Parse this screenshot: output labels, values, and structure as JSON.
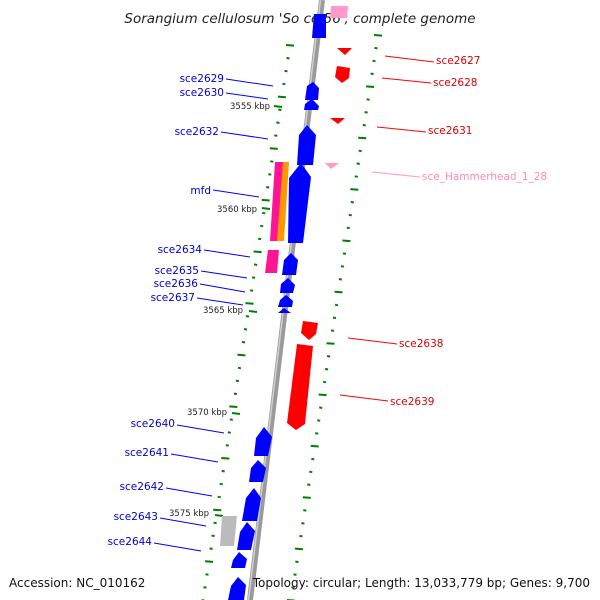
{
  "title": "Sorangium cellulosum 'So ce 56', complete genome",
  "footer": {
    "accession": "Accession: NC_010162",
    "topology": "Topology: circular; Length: 13,033,779 bp; Genes: 9,700"
  },
  "colors": {
    "backbone": "#9a9a9a",
    "plus_gene": "#0000ff",
    "minus_gene": "#ff0000",
    "rna": "#ff99cc",
    "ticks": "#008000",
    "mfd_magenta": "#ff1493",
    "mfd_orange": "#ff9900",
    "gray_feature": "#bbbbbb"
  },
  "scale_labels": [
    "3555 kbp",
    "3560 kbp",
    "3565 kbp",
    "3570 kbp",
    "3575 kbp"
  ],
  "left_genes": [
    {
      "label": "sce2629"
    },
    {
      "label": "sce2630"
    },
    {
      "label": "sce2632"
    },
    {
      "label": "mfd"
    },
    {
      "label": "sce2634"
    },
    {
      "label": "sce2635"
    },
    {
      "label": "sce2636"
    },
    {
      "label": "sce2637"
    },
    {
      "label": "sce2640"
    },
    {
      "label": "sce2641"
    },
    {
      "label": "sce2642"
    },
    {
      "label": "sce2643"
    },
    {
      "label": "sce2644"
    }
  ],
  "right_genes": [
    {
      "label": "sce2627"
    },
    {
      "label": "sce2628"
    },
    {
      "label": "sce2631"
    },
    {
      "label": "sce_Hammerhead_1_28"
    },
    {
      "label": "sce2638"
    },
    {
      "label": "sce2639"
    }
  ]
}
